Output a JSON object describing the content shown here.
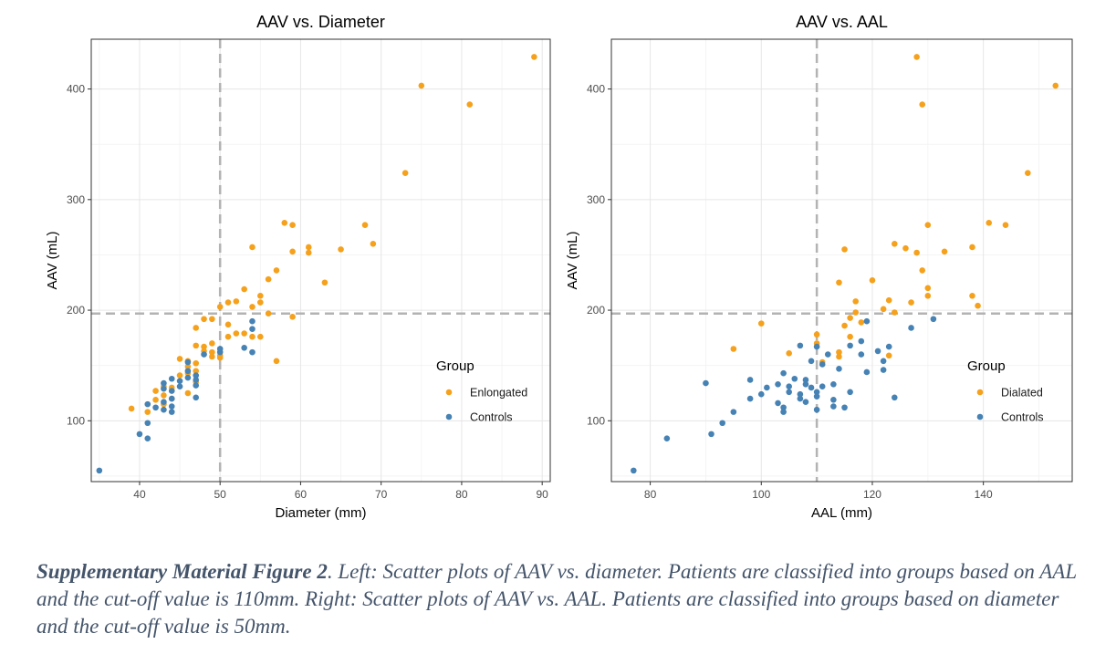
{
  "chart_data": [
    {
      "type": "scatter",
      "title": "AAV vs. Diameter",
      "xlabel": "Diameter (mm)",
      "ylabel": "AAV (mL)",
      "xlim": [
        34,
        91
      ],
      "ylim": [
        45,
        445
      ],
      "xticks": [
        40,
        50,
        60,
        70,
        80,
        90
      ],
      "yticks": [
        100,
        200,
        300,
        400
      ],
      "cutoff_x": 50,
      "cutoff_y": 197,
      "legend": {
        "title": "Group",
        "position": "right"
      },
      "series": [
        {
          "name": "Enlongated",
          "color": "#f5a11c",
          "points": [
            [
              39,
              111
            ],
            [
              41,
              108
            ],
            [
              42,
              127
            ],
            [
              42,
              119
            ],
            [
              43,
              123
            ],
            [
              43,
              115
            ],
            [
              43,
              131
            ],
            [
              44,
              130
            ],
            [
              44,
              120
            ],
            [
              45,
              156
            ],
            [
              45,
              141
            ],
            [
              46,
              149
            ],
            [
              46,
              143
            ],
            [
              46,
              125
            ],
            [
              46,
              154
            ],
            [
              47,
              145
            ],
            [
              47,
              152
            ],
            [
              47,
              135
            ],
            [
              47,
              168
            ],
            [
              47,
              184
            ],
            [
              48,
              192
            ],
            [
              48,
              163
            ],
            [
              48,
              167
            ],
            [
              49,
              170
            ],
            [
              49,
              192
            ],
            [
              49,
              158
            ],
            [
              49,
              162
            ],
            [
              50,
              203
            ],
            [
              50,
              157
            ],
            [
              50,
              159
            ],
            [
              51,
              207
            ],
            [
              51,
              187
            ],
            [
              51,
              176
            ],
            [
              52,
              208
            ],
            [
              52,
              179
            ],
            [
              53,
              219
            ],
            [
              53,
              179
            ],
            [
              54,
              257
            ],
            [
              54,
              176
            ],
            [
              54,
              203
            ],
            [
              55,
              213
            ],
            [
              55,
              207
            ],
            [
              55,
              176
            ],
            [
              56,
              228
            ],
            [
              56,
              197
            ],
            [
              57,
              236
            ],
            [
              57,
              154
            ],
            [
              58,
              279
            ],
            [
              59,
              277
            ],
            [
              59,
              253
            ],
            [
              59,
              194
            ],
            [
              61,
              257
            ],
            [
              61,
              252
            ],
            [
              63,
              225
            ],
            [
              65,
              255
            ],
            [
              68,
              277
            ],
            [
              69,
              260
            ],
            [
              73,
              324
            ],
            [
              75,
              403
            ],
            [
              81,
              386
            ],
            [
              89,
              429
            ]
          ]
        },
        {
          "name": "Controls",
          "color": "#4682b4",
          "points": [
            [
              35,
              55
            ],
            [
              40,
              88
            ],
            [
              41,
              84
            ],
            [
              41,
              98
            ],
            [
              41,
              115
            ],
            [
              42,
              112
            ],
            [
              43,
              110
            ],
            [
              43,
              117
            ],
            [
              43,
              129
            ],
            [
              43,
              134
            ],
            [
              44,
              108
            ],
            [
              44,
              113
            ],
            [
              44,
              120
            ],
            [
              44,
              127
            ],
            [
              44,
              138
            ],
            [
              45,
              131
            ],
            [
              45,
              136
            ],
            [
              46,
              145
            ],
            [
              46,
              139
            ],
            [
              46,
              153
            ],
            [
              47,
              121
            ],
            [
              47,
              132
            ],
            [
              47,
              137
            ],
            [
              47,
              141
            ],
            [
              48,
              160
            ],
            [
              50,
              162
            ],
            [
              50,
              165
            ],
            [
              53,
              166
            ],
            [
              54,
              162
            ],
            [
              54,
              183
            ],
            [
              54,
              190
            ]
          ]
        }
      ]
    },
    {
      "type": "scatter",
      "title": "AAV vs. AAL",
      "xlabel": "AAL (mm)",
      "ylabel": "AAV (mL)",
      "xlim": [
        73,
        156
      ],
      "ylim": [
        45,
        445
      ],
      "xticks": [
        80,
        100,
        120,
        140
      ],
      "yticks": [
        100,
        200,
        300,
        400
      ],
      "cutoff_x": 110,
      "cutoff_y": 197,
      "legend": {
        "title": "Group",
        "position": "right"
      },
      "series": [
        {
          "name": "Dialated",
          "color": "#f5a11c",
          "points": [
            [
              95,
              165
            ],
            [
              100,
              188
            ],
            [
              105,
              161
            ],
            [
              110,
              170
            ],
            [
              110,
              178
            ],
            [
              111,
              153
            ],
            [
              114,
              225
            ],
            [
              114,
              158
            ],
            [
              114,
              162
            ],
            [
              115,
              186
            ],
            [
              115,
              255
            ],
            [
              116,
              193
            ],
            [
              116,
              176
            ],
            [
              117,
              208
            ],
            [
              117,
              198
            ],
            [
              118,
              189
            ],
            [
              120,
              227
            ],
            [
              122,
              201
            ],
            [
              123,
              209
            ],
            [
              123,
              159
            ],
            [
              124,
              260
            ],
            [
              124,
              198
            ],
            [
              126,
              256
            ],
            [
              127,
              207
            ],
            [
              128,
              252
            ],
            [
              128,
              429
            ],
            [
              129,
              386
            ],
            [
              129,
              236
            ],
            [
              130,
              277
            ],
            [
              130,
              220
            ],
            [
              130,
              213
            ],
            [
              133,
              253
            ],
            [
              138,
              257
            ],
            [
              138,
              213
            ],
            [
              139,
              204
            ],
            [
              141,
              279
            ],
            [
              144,
              277
            ],
            [
              148,
              324
            ],
            [
              153,
              403
            ]
          ]
        },
        {
          "name": "Controls",
          "color": "#4682b4",
          "points": [
            [
              77,
              55
            ],
            [
              83,
              84
            ],
            [
              90,
              134
            ],
            [
              91,
              88
            ],
            [
              93,
              98
            ],
            [
              95,
              108
            ],
            [
              98,
              137
            ],
            [
              98,
              120
            ],
            [
              100,
              124
            ],
            [
              101,
              130
            ],
            [
              103,
              116
            ],
            [
              103,
              133
            ],
            [
              104,
              112
            ],
            [
              104,
              108
            ],
            [
              104,
              143
            ],
            [
              105,
              126
            ],
            [
              105,
              131
            ],
            [
              106,
              138
            ],
            [
              107,
              120
            ],
            [
              107,
              124
            ],
            [
              107,
              168
            ],
            [
              108,
              133
            ],
            [
              108,
              137
            ],
            [
              108,
              117
            ],
            [
              109,
              130
            ],
            [
              109,
              154
            ],
            [
              110,
              126
            ],
            [
              110,
              110
            ],
            [
              110,
              122
            ],
            [
              110,
              167
            ],
            [
              111,
              131
            ],
            [
              111,
              151
            ],
            [
              112,
              160
            ],
            [
              113,
              119
            ],
            [
              113,
              133
            ],
            [
              113,
              113
            ],
            [
              114,
              147
            ],
            [
              115,
              112
            ],
            [
              116,
              168
            ],
            [
              116,
              126
            ],
            [
              118,
              160
            ],
            [
              118,
              172
            ],
            [
              119,
              144
            ],
            [
              119,
              190
            ],
            [
              121,
              163
            ],
            [
              122,
              154
            ],
            [
              122,
              146
            ],
            [
              123,
              167
            ],
            [
              124,
              121
            ],
            [
              127,
              184
            ],
            [
              131,
              192
            ]
          ]
        }
      ]
    }
  ],
  "caption": {
    "lead": "Supplementary Material Figure 2",
    "text": ". Left: Scatter plots of AAV vs. diameter. Patients are classified into groups based on AAL and the cut-off value is 110mm. Right: Scatter plots of AAV vs. AAL. Patients are classified into groups based on diameter and the cut-off value is 50mm."
  }
}
